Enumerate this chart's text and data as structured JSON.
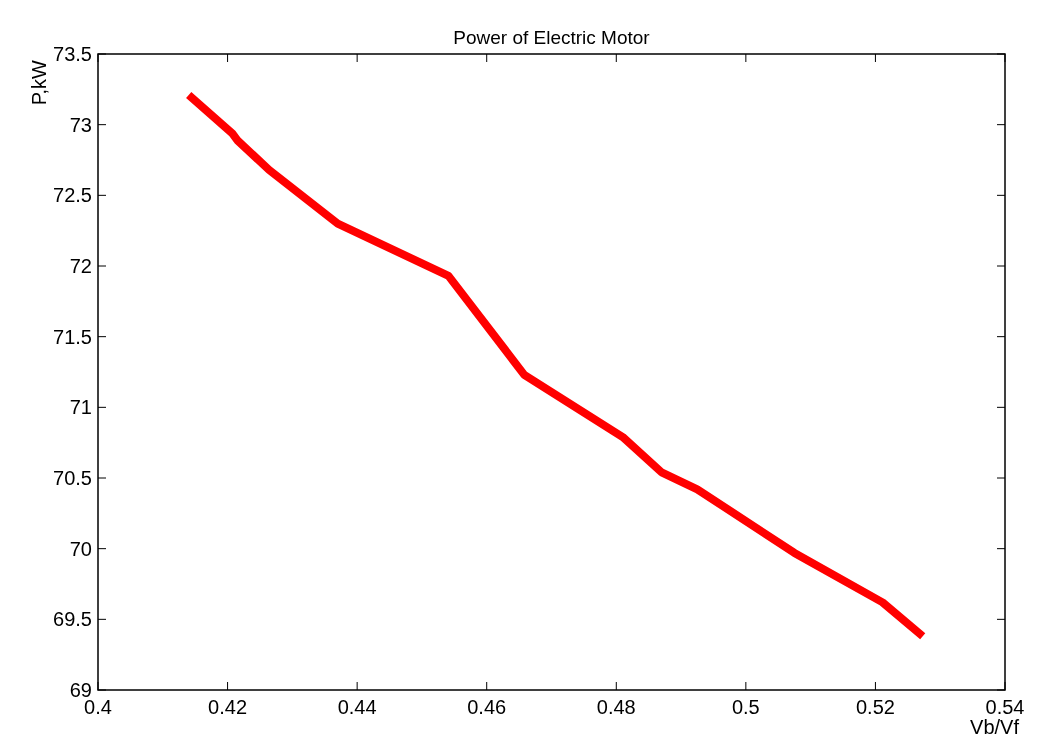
{
  "chart_data": {
    "type": "line",
    "title": "Power of Electric Motor",
    "xlabel": "Vb/Vf",
    "ylabel": "P,kW",
    "x": [
      0.414,
      0.4207,
      0.4215,
      0.4264,
      0.437,
      0.4541,
      0.4658,
      0.481,
      0.487,
      0.4925,
      0.5075,
      0.5211,
      0.5273
    ],
    "series": [
      {
        "color": "#ff0000",
        "values": [
          73.21,
          72.94,
          72.89,
          72.68,
          72.3,
          71.93,
          71.23,
          70.79,
          70.54,
          70.42,
          69.97,
          69.62,
          69.38
        ]
      }
    ],
    "xlim": [
      0.4,
      0.54
    ],
    "xticks": [
      0.4,
      0.42,
      0.44,
      0.46,
      0.48,
      0.5,
      0.52,
      0.54
    ],
    "ylim": [
      69,
      73.5
    ],
    "yticks": [
      69,
      69.5,
      70,
      70.5,
      71,
      71.5,
      72,
      72.5,
      73,
      73.5
    ],
    "grid": false,
    "marker": "none",
    "line_style": "solid"
  }
}
